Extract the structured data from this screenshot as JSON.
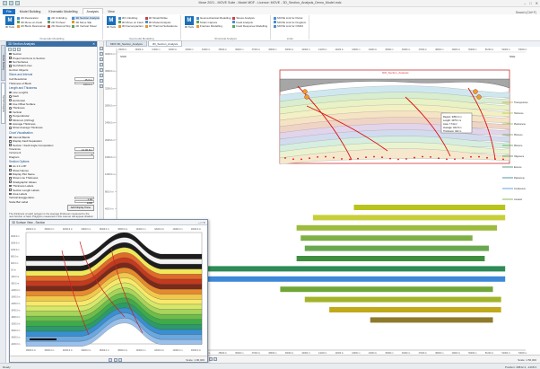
{
  "window": {
    "title": "Move 2021 - MOVE Suite - Model MDF - Licence: MOVE - 3D_Section_Analysis_Demo_Model.mdx",
    "controls": [
      "‒",
      "□",
      "✕"
    ]
  },
  "tabs": [
    "File",
    "Model Building",
    "Kinematic Modelling",
    "Analysis",
    "View"
  ],
  "active_tab": "Analysis",
  "tabs_right": "Search (Ctrl+F)",
  "ribbon": {
    "groups": [
      {
        "name": "Kinematic Modelling",
        "big_label": "3D Tools",
        "items": [
          "2D Restoration",
          "3D Move-on-Fault",
          "2D Block Restoration",
          "2D Unfolding",
          "2D Trishear",
          "2D Flexural Slip",
          "3D Section Analysis",
          "3D Move Slip",
          "2D Vertical Shear"
        ]
      },
      {
        "name": "Geomodel Modelling",
        "big_label": "3D Tools",
        "items": [
          "3D Unfolding",
          "3D Move on Fault",
          "3D Decompaction",
          "3D Strain/Strike",
          "3D Model Analysis",
          "3D Thermal Subsidence"
        ]
      },
      {
        "name": "Structural Analysis",
        "big_label": "3D Tools",
        "items": [
          "Geomechanical Modelling",
          "Strain Capture",
          "Fracture Modelling",
          "Stress Analysis",
          "Fault Analysis",
          "Fault Response Modelling"
        ]
      },
      {
        "name": "Links",
        "items": [
          "MOVE Link for Petrel",
          "MOVE Link for Kingdom",
          "MOVE Link for OSDU"
        ]
      }
    ]
  },
  "dock_tabs": [
    "Model Building",
    "Section Analysis"
  ],
  "panel": {
    "title": "3D Section Analysis",
    "rows": [
      {
        "type": "cb",
        "on": true,
        "label": "Section"
      },
      {
        "type": "cb",
        "on": false,
        "label": "Project Horizons to Section"
      },
      {
        "type": "cb",
        "on": false,
        "label": "Set Surfaces"
      },
      {
        "type": "cb",
        "on": false,
        "label": "Set Model Lines"
      },
      {
        "type": "text",
        "label": "Horizon Objects"
      }
    ],
    "section1": "Slices and Interval",
    "params": [
      {
        "label": "Cell Resolution",
        "value": "25.0 m"
      },
      {
        "label": "Thickness of Block",
        "value": "100.0 m"
      }
    ],
    "section2": "Length and Thickness",
    "opts": [
      {
        "type": "rd",
        "on": true,
        "label": "Line Lengths"
      },
      {
        "type": "rd",
        "on": false,
        "label": "Fault"
      },
      {
        "type": "rd",
        "on": false,
        "label": "Horizontal"
      },
      {
        "type": "rd",
        "on": false,
        "label": "Use Offset Surface"
      },
      {
        "type": "rd",
        "on": true,
        "label": "Thickness"
      },
      {
        "type": "rd",
        "on": false,
        "label": "Vertical"
      },
      {
        "type": "rd",
        "on": false,
        "label": "Perpendicular"
      },
      {
        "type": "rd",
        "on": false,
        "label": "Minimum (Orthog)"
      },
      {
        "type": "rd",
        "on": false,
        "label": "Average Thickness"
      },
      {
        "type": "rd",
        "on": true,
        "label": "Show Average Thickness"
      }
    ],
    "section3": "Chart Visualisation",
    "chart_opts": [
      {
        "type": "cb",
        "on": true,
        "label": "Interval Bands"
      },
      {
        "type": "cb",
        "on": false,
        "label": "Display Fault Separation"
      },
      {
        "type": "cb",
        "on": false,
        "label": "Section / Fault Angle Computation"
      }
    ],
    "values": [
      {
        "label": "Tolerance",
        "value": "10.00 Km"
      },
      {
        "label": "Increment",
        "value": "1"
      },
      {
        "label": "Diagram",
        "value": ""
      }
    ],
    "section4": "Section Options",
    "display_opts": [
      {
        "type": "cb",
        "on": true,
        "label": "As 1:1 LOP"
      },
      {
        "type": "cb",
        "on": false,
        "label": "Show Names"
      },
      {
        "type": "cb",
        "on": true,
        "label": "Display Plot Name"
      },
      {
        "type": "cb",
        "on": false,
        "label": "Show Line Thickness"
      },
      {
        "type": "cb",
        "on": false,
        "label": "Stratigraphic Values"
      },
      {
        "type": "cb",
        "on": false,
        "label": "Thickness Labels"
      },
      {
        "type": "cb",
        "on": false,
        "label": "Section Length Labels"
      },
      {
        "type": "cb",
        "on": false,
        "label": "Area Labels"
      }
    ],
    "scale_rows": [
      {
        "label": "Vertical Exaggeration",
        "value": "1.00"
      },
      {
        "label": "Scale Bar Label",
        "value": "1000"
      }
    ],
    "apply_label": "Add Display Pane",
    "note": "The thickness of each polygon is the average thickness measured to the next horizon or fault. Polygons measured in this manner will appear shaded."
  },
  "doc_tabs": [
    "MDX 3D_Section_Analysis",
    "3D_Section_Analysis"
  ],
  "main": {
    "section_label": "NW_Section_Analysis",
    "left_end": "SSW",
    "right_end": "NNE",
    "y_ticks": [
      "4000.0 m",
      "3600.0 m",
      "3200.0 m",
      "2800.0 m",
      "2400.0 m",
      "2000.0 m",
      "1600.0 m",
      "1200.0 m",
      "800.0 m",
      "400.0 m",
      "0.0 m",
      "-400.0 m",
      "-800.0 m",
      "-1200.0 m",
      "-1600.0 m",
      "-2000.0 m",
      "-2400.0 m",
      "-2800.0 m"
    ],
    "x_ticks": [
      "29000 m",
      "30000 m",
      "31000 m",
      "32000 m",
      "33000 m",
      "34000 m",
      "35000 m",
      "36000 m",
      "37000 m",
      "38000 m",
      "39000 m",
      "40000 m",
      "41000 m",
      "42000 m",
      "43000 m",
      "44000 m",
      "45000 m",
      "46000 m",
      "47000 m",
      "48000 m",
      "49000 m",
      "50000 m",
      "51000 m",
      "52000 m",
      "53000 m"
    ],
    "info_box": [
      "Region: 3351.6 m",
      "Length: 4370.1 m",
      "Area: 7.5 km²",
      "Average: 321.8 m",
      "Thickness: 322 m"
    ],
    "legend": [
      "Transgressive",
      "Holocene",
      "Pleistocene",
      "Pliocene",
      "Miocene",
      "Oligocene",
      "Eocene",
      "Paleocene",
      "Cretaceous",
      "Jurassic"
    ],
    "zoom": "Scale: 1:56,000",
    "bands": [
      {
        "start": 58,
        "end": 95,
        "color": "#b8c41c"
      },
      {
        "start": 48,
        "end": 95,
        "color": "#c6cf3a"
      },
      {
        "start": 44,
        "end": 93,
        "color": "#9dbb3d"
      },
      {
        "start": 45,
        "end": 87,
        "color": "#7eb045"
      },
      {
        "start": 46,
        "end": 91,
        "color": "#6aa84f"
      },
      {
        "start": 44,
        "end": 90,
        "color": "#3f8f3f"
      },
      {
        "start": 12,
        "end": 95,
        "color": "#2e8b57"
      },
      {
        "start": 5,
        "end": 95,
        "color": "#3d88d9"
      },
      {
        "start": 40,
        "end": 92,
        "color": "#6fa637"
      },
      {
        "start": 46,
        "end": 94,
        "color": "#a4b428"
      },
      {
        "start": 52,
        "end": 94,
        "color": "#c1a91a"
      },
      {
        "start": 62,
        "end": 92,
        "color": "#8e7a2a"
      }
    ]
  },
  "float_window": {
    "title": "3D Surface View - Section",
    "controls": [
      "‒",
      "□",
      "✕"
    ],
    "north_label": "NNE",
    "x_ticks": [
      "28000.0 m",
      "30000.0 m",
      "32000.0 m",
      "34000.0 m",
      "36000.0 m",
      "38000.0 m",
      "40000.0 m",
      "42000.0 m",
      "44000.0 m",
      "46000.0 m"
    ],
    "y_ticks": [
      "2000.0 m",
      "1600.0 m",
      "1200.0 m",
      "800.0 m",
      "400.0 m",
      "0.0 m",
      "-400.0 m",
      "-800.0 m",
      "-1200.0 m",
      "-1600.0 m",
      "-2000.0 m",
      "-2400.0 m",
      "-2800.0 m",
      "-3200.0 m",
      "-3600.0 m",
      "-4000.0 m",
      "-4400.0 m"
    ],
    "zoom": "Scale: 1:96,000",
    "layer_colors": [
      "#1d1d1d",
      "#f2f2f2",
      "#1d1d1d",
      "#f0e85a",
      "#e06a2a",
      "#c33a1e",
      "#7a2a1a",
      "#e68a2e",
      "#f2c84b",
      "#f6e96b",
      "#d6e86a",
      "#a8d45a",
      "#6dbd4a",
      "#3faa4a",
      "#2d9a6a",
      "#3a8fd0",
      "#6aa8e0",
      "#9ac0ea"
    ]
  },
  "statusbar": {
    "left": "Ready",
    "right": "Position: 39812.4, -1208.3"
  }
}
